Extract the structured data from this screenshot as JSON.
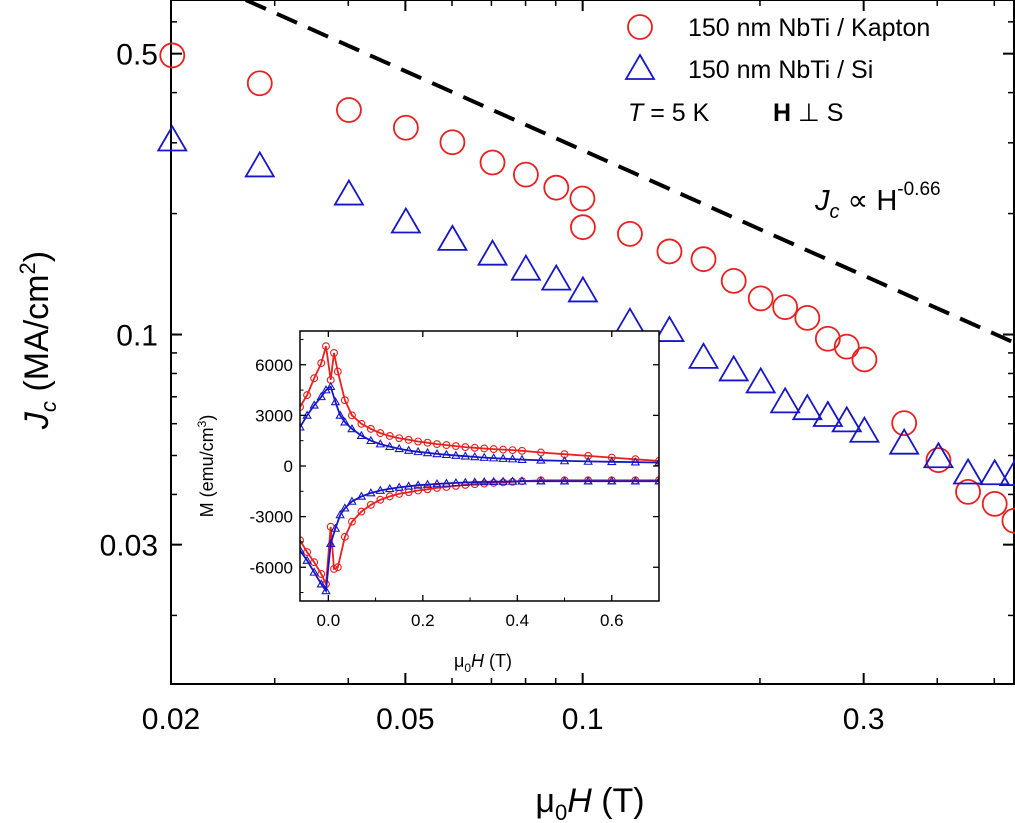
{
  "chart_data": [
    {
      "type": "scatter",
      "xscale": "log",
      "yscale": "log",
      "xlim": [
        0.02,
        0.54
      ],
      "ylim": [
        0.0135,
        0.68
      ],
      "xlabel": {
        "pre": "μ",
        "sub": "0",
        "main": "H",
        "post": " (T)"
      },
      "ylabel": {
        "main": "J",
        "sub": "c",
        "post": " (MA/cm",
        "sup": "2",
        "end": ")"
      },
      "xticks": [
        {
          "value": 0.02,
          "label": "0.02"
        },
        {
          "value": 0.05,
          "label": "0.05"
        },
        {
          "value": 0.1,
          "label": "0.1"
        },
        {
          "value": 0.3,
          "label": "0.3"
        }
      ],
      "yticks": [
        {
          "value": 0.03,
          "label": "0.03"
        },
        {
          "value": 0.1,
          "label": "0.1"
        },
        {
          "value": 0.5,
          "label": "0.5"
        }
      ],
      "legend": {
        "placement": "top-right",
        "entries": [
          "150 nm NbTi / Kapton",
          "150 nm NbTi / Si"
        ]
      },
      "conditions": {
        "t_var": "T",
        "t_value": " = 5 K",
        "field": "H",
        "perp": " ⊥ S"
      },
      "annotation": {
        "var": "J",
        "sub": "c",
        "mid": " ∝ H",
        "sup": "-0.66"
      },
      "guide_line": {
        "x": [
          0.0268,
          0.54
        ],
        "y": [
          0.68,
          0.0955
        ],
        "style": "dashed"
      },
      "series": [
        {
          "name": "150 nm NbTi / Kapton",
          "marker": "circle",
          "color": "#e8201e",
          "x": [
            0.0201,
            0.0283,
            0.0401,
            0.0501,
            0.0601,
            0.0703,
            0.0801,
            0.0902,
            0.0999,
            0.1001,
            0.1203,
            0.1404,
            0.1604,
            0.1805,
            0.2006,
            0.2207,
            0.2407,
            0.2608,
            0.2808,
            0.3009,
            0.3515,
            0.4019,
            0.4512,
            0.5008,
            0.5409
          ],
          "y": [
            0.495,
            0.422,
            0.362,
            0.327,
            0.301,
            0.268,
            0.25,
            0.232,
            0.218,
            0.185,
            0.178,
            0.161,
            0.154,
            0.136,
            0.123,
            0.117,
            0.11,
            0.0976,
            0.0933,
            0.0867,
            0.0602,
            0.0487,
            0.0406,
            0.0379,
            0.0344
          ]
        },
        {
          "name": "150 nm NbTi / Si",
          "marker": "triangle",
          "color": "#1616c8",
          "x": [
            0.0201,
            0.0283,
            0.0401,
            0.0501,
            0.0601,
            0.0703,
            0.0801,
            0.0902,
            0.1001,
            0.1203,
            0.1404,
            0.1604,
            0.1805,
            0.2006,
            0.2207,
            0.2407,
            0.2608,
            0.2808,
            0.3009,
            0.3515,
            0.4019,
            0.4512,
            0.5008,
            0.5409
          ],
          "y": [
            0.304,
            0.262,
            0.223,
            0.19,
            0.172,
            0.158,
            0.145,
            0.137,
            0.128,
            0.107,
            0.102,
            0.0875,
            0.0814,
            0.076,
            0.0678,
            0.0652,
            0.0627,
            0.0608,
            0.0573,
            0.0535,
            0.0495,
            0.0451,
            0.0449,
            0.0447
          ]
        }
      ]
    },
    {
      "type": "line",
      "xlim": [
        -0.06,
        0.7
      ],
      "ylim": [
        -8000,
        8000
      ],
      "xlabel": {
        "pre": "μ",
        "sub": "0",
        "main": "H",
        "post": " (T)"
      },
      "ylabel": {
        "pre": "M (emu/cm",
        "sup": "3",
        "post": ")"
      },
      "xticks": [
        {
          "value": 0.0,
          "label": "0.0"
        },
        {
          "value": 0.2,
          "label": "0.2"
        },
        {
          "value": 0.4,
          "label": "0.4"
        },
        {
          "value": 0.6,
          "label": "0.6"
        }
      ],
      "yticks": [
        {
          "value": 6000,
          "label": "6000"
        },
        {
          "value": 3000,
          "label": "3000"
        },
        {
          "value": 0,
          "label": "0"
        },
        {
          "value": -3000,
          "label": "-3000"
        },
        {
          "value": -6000,
          "label": "-6000"
        }
      ],
      "series": [
        {
          "name": "150 nm NbTi / Kapton",
          "marker": "circle",
          "color": "#e8201e",
          "upper": {
            "x": [
              -0.06,
              -0.045,
              -0.03,
              -0.015,
              -0.005,
              0.005,
              0.012,
              0.02,
              0.035,
              0.05,
              0.07,
              0.09,
              0.11,
              0.13,
              0.15,
              0.17,
              0.19,
              0.21,
              0.23,
              0.25,
              0.27,
              0.29,
              0.31,
              0.33,
              0.35,
              0.37,
              0.39,
              0.41,
              0.45,
              0.5,
              0.55,
              0.6,
              0.65,
              0.7
            ],
            "y": [
              3500,
              4200,
              5200,
              6100,
              7100,
              5100,
              6700,
              5600,
              3900,
              3000,
              2500,
              2200,
              1950,
              1780,
              1650,
              1550,
              1450,
              1380,
              1300,
              1240,
              1180,
              1120,
              1080,
              1040,
              1000,
              970,
              940,
              900,
              800,
              700,
              600,
              500,
              400,
              300
            ]
          },
          "lower": {
            "x": [
              -0.06,
              -0.045,
              -0.03,
              -0.015,
              -0.005,
              0.005,
              0.012,
              0.02,
              0.035,
              0.05,
              0.07,
              0.09,
              0.11,
              0.13,
              0.15,
              0.17,
              0.19,
              0.21,
              0.23,
              0.25,
              0.27,
              0.29,
              0.31,
              0.33,
              0.35,
              0.37,
              0.39,
              0.41,
              0.45,
              0.5,
              0.55,
              0.6,
              0.65,
              0.7
            ],
            "y": [
              -4400,
              -5100,
              -5700,
              -6400,
              -7000,
              -3600,
              -6100,
              -6000,
              -4200,
              -3300,
              -2700,
              -2300,
              -2000,
              -1800,
              -1650,
              -1550,
              -1450,
              -1380,
              -1300,
              -1240,
              -1180,
              -1120,
              -1080,
              -1040,
              -1000,
              -970,
              -940,
              -900,
              -850,
              -850,
              -850,
              -850,
              -850,
              -850
            ]
          }
        },
        {
          "name": "150 nm NbTi / Si",
          "marker": "triangle",
          "color": "#1616c8",
          "upper": {
            "x": [
              -0.06,
              -0.045,
              -0.03,
              -0.015,
              -0.005,
              0.005,
              0.015,
              0.025,
              0.035,
              0.05,
              0.07,
              0.09,
              0.11,
              0.13,
              0.15,
              0.17,
              0.19,
              0.21,
              0.23,
              0.25,
              0.27,
              0.29,
              0.31,
              0.33,
              0.35,
              0.37,
              0.39,
              0.41,
              0.45,
              0.5,
              0.55,
              0.6,
              0.65,
              0.7
            ],
            "y": [
              2300,
              3000,
              3600,
              4100,
              4500,
              4700,
              3800,
              3000,
              2600,
              2200,
              1800,
              1500,
              1300,
              1150,
              1020,
              920,
              840,
              780,
              720,
              670,
              620,
              580,
              540,
              500,
              470,
              440,
              410,
              380,
              340,
              300,
              270,
              250,
              230,
              200
            ]
          },
          "lower": {
            "x": [
              -0.06,
              -0.045,
              -0.03,
              -0.015,
              -0.005,
              0.005,
              0.015,
              0.025,
              0.035,
              0.05,
              0.07,
              0.09,
              0.11,
              0.13,
              0.15,
              0.17,
              0.19,
              0.21,
              0.23,
              0.25,
              0.27,
              0.29,
              0.31,
              0.33,
              0.35,
              0.37,
              0.39,
              0.41,
              0.45,
              0.5,
              0.55,
              0.6,
              0.65,
              0.7
            ],
            "y": [
              -5000,
              -5600,
              -6300,
              -7000,
              -7400,
              -4600,
              -3700,
              -2900,
              -2500,
              -2100,
              -1800,
              -1600,
              -1450,
              -1350,
              -1270,
              -1200,
              -1140,
              -1100,
              -1060,
              -1030,
              -1000,
              -980,
              -960,
              -940,
              -930,
              -920,
              -910,
              -900,
              -900,
              -900,
              -900,
              -900,
              -900,
              -900
            ]
          }
        }
      ]
    }
  ]
}
